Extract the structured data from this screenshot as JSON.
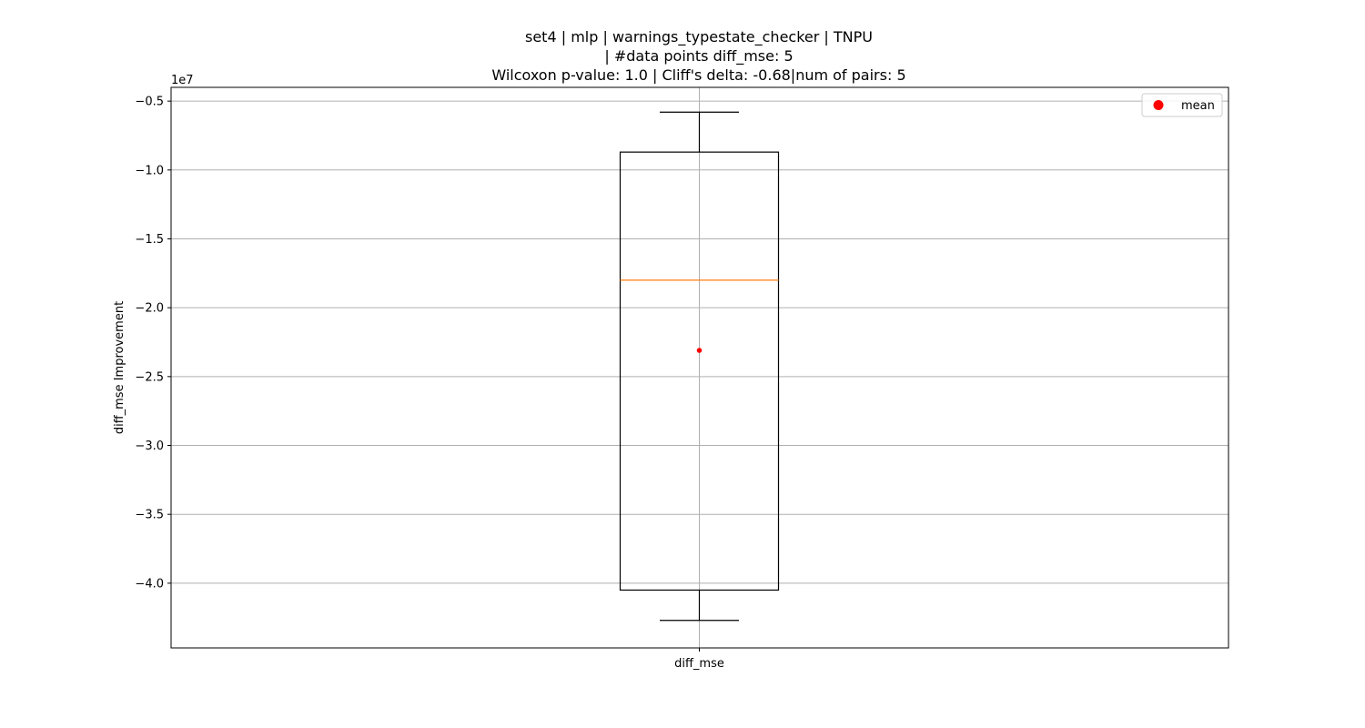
{
  "chart_data": {
    "type": "boxplot",
    "title_lines": [
      "set4 | mlp | warnings_typestate_checker | TNPU",
      "| #data points diff_mse: 5",
      "Wilcoxon p-value: 1.0 | Cliff's delta: -0.68|num of pairs: 5"
    ],
    "ylabel": "diff_mse Improvement",
    "y_offset_label": "1e7",
    "categories": [
      "diff_mse"
    ],
    "y_ticks": [
      -0.5,
      -1.0,
      -1.5,
      -2.0,
      -2.5,
      -3.0,
      -3.5,
      -4.0
    ],
    "y_tick_labels": [
      "−0.5",
      "−1.0",
      "−1.5",
      "−2.0",
      "−2.5",
      "−3.0",
      "−3.5",
      "−4.0"
    ],
    "ylim": [
      -4.47,
      -0.4
    ],
    "boxes": [
      {
        "category": "diff_mse",
        "whisker_high": -0.58,
        "q3": -0.87,
        "median": -1.8,
        "mean": -2.31,
        "q1": -4.05,
        "whisker_low": -4.27
      }
    ],
    "legend": {
      "placement": "top-right",
      "entries": [
        {
          "label": "mean",
          "color": "#ff0000"
        }
      ]
    },
    "grid": true,
    "colors": {
      "median": "#ff7f0e",
      "mean": "#ff0000",
      "box": "#000000",
      "grid": "#b0b0b0"
    }
  }
}
